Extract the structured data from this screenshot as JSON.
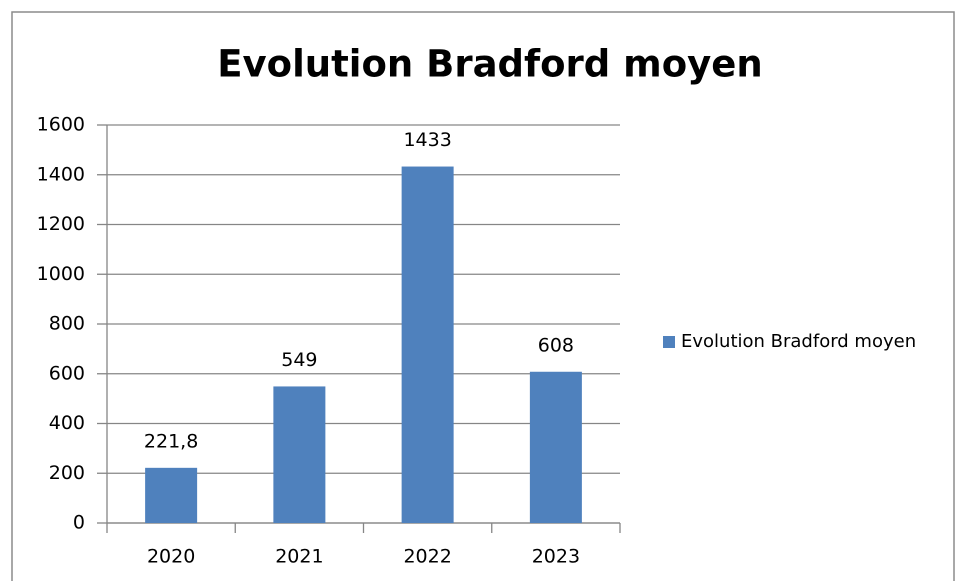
{
  "chart_data": {
    "type": "bar",
    "title": "Evolution Bradford moyen",
    "categories": [
      "2020",
      "2021",
      "2022",
      "2023"
    ],
    "series": [
      {
        "name": "Evolution Bradford moyen",
        "color": "#4f81bd",
        "values": [
          221.8,
          549,
          1433,
          608
        ],
        "value_labels": [
          "221,8",
          "549",
          "1433",
          "608"
        ]
      }
    ],
    "ylim": [
      0,
      1600
    ],
    "yticks": [
      0,
      200,
      400,
      600,
      800,
      1000,
      1200,
      1400,
      1600
    ],
    "grid": true,
    "legend": "right"
  }
}
